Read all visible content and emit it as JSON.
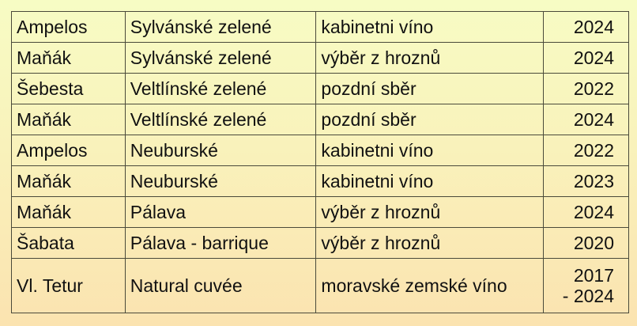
{
  "rows": [
    {
      "producer": "Ampelos",
      "variety": "Sylvánské zelené",
      "category": "kabinetni víno",
      "year": "2024"
    },
    {
      "producer": "Maňák",
      "variety": "Sylvánské zelené",
      "category": "výběr z hroznů",
      "year": "2024"
    },
    {
      "producer": "Šebesta",
      "variety": "Veltlínské zelené",
      "category": "pozdní sběr",
      "year": "2022"
    },
    {
      "producer": "Maňák",
      "variety": "Veltlínské zelené",
      "category": "pozdní sběr",
      "year": "2024"
    },
    {
      "producer": "Ampelos",
      "variety": "Neuburské",
      "category": "kabinetni víno",
      "year": "2022"
    },
    {
      "producer": "Maňák",
      "variety": "Neuburské",
      "category": "kabinetni víno",
      "year": "2023"
    },
    {
      "producer": "Maňák",
      "variety": "Pálava",
      "category": "výběr z hroznů",
      "year": "2024"
    },
    {
      "producer": "Šabata",
      "variety": "Pálava - barrique",
      "category": "výběr z hroznů",
      "year": "2020"
    },
    {
      "producer": "Vl. Tetur",
      "variety": "Natural cuvée",
      "category": "moravské zemské víno",
      "year": "2017\n- 2024"
    }
  ]
}
